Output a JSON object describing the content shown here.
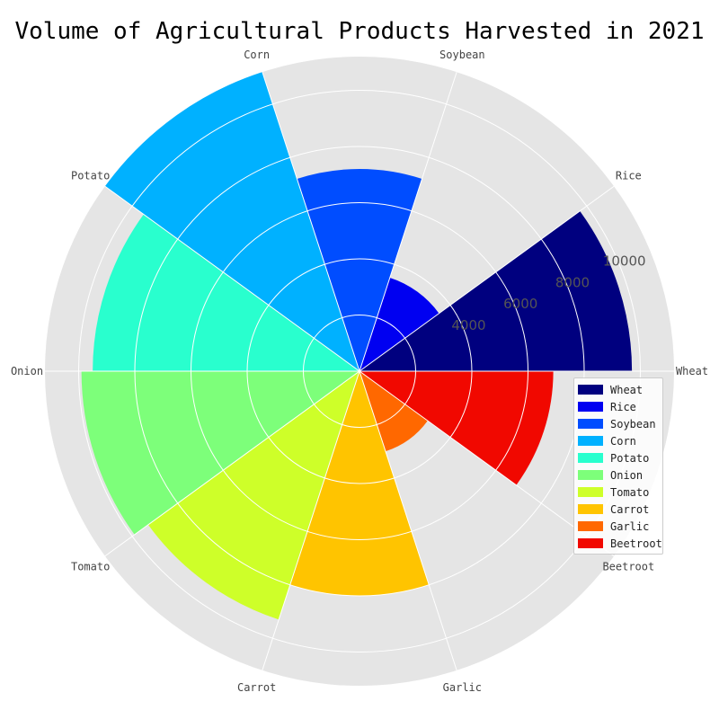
{
  "chart_data": {
    "type": "polar-bar",
    "title": "Volume of Agricultural Products Harvested in 2021",
    "categories": [
      "Wheat",
      "Rice",
      "Soybean",
      "Corn",
      "Potato",
      "Onion",
      "Tomato",
      "Carrot",
      "Garlic",
      "Beetroot"
    ],
    "values": [
      9700,
      3500,
      7200,
      11200,
      9500,
      9900,
      9300,
      8000,
      3000,
      6900
    ],
    "colors": [
      "#00007f",
      "#0000f1",
      "#004dff",
      "#00b1ff",
      "#29ffce",
      "#7dff7a",
      "#ceff29",
      "#ffc400",
      "#ff6800",
      "#f10800"
    ],
    "r_ticks": [
      4000,
      6000,
      8000,
      10000
    ],
    "rlim": [
      0,
      11200
    ],
    "grid": true,
    "legend_position": "right"
  }
}
